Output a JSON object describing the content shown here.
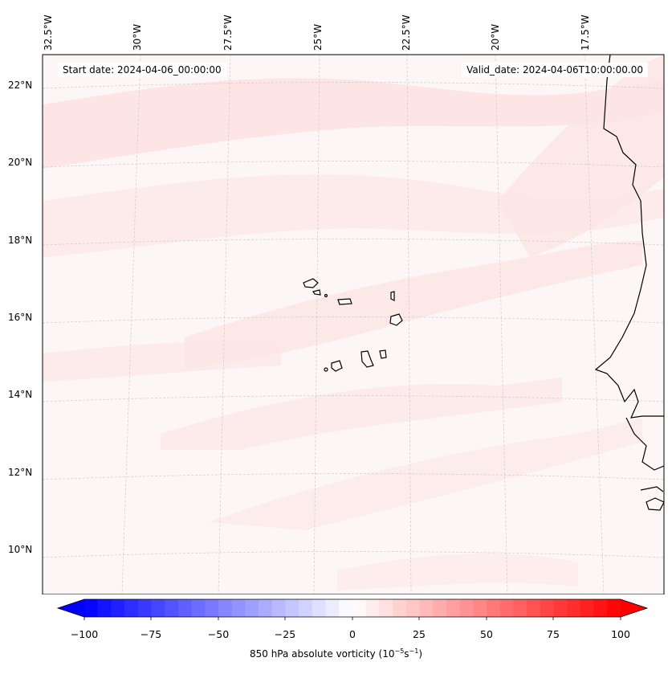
{
  "map": {
    "lon_labels": [
      "32.5°W",
      "30°W",
      "27.5°W",
      "25°W",
      "22.5°W",
      "20°W",
      "17.5°W"
    ],
    "lat_labels": [
      "22°N",
      "20°N",
      "18°N",
      "16°N",
      "14°N",
      "12°N",
      "10°N"
    ],
    "start_date": "Start date: 2024-04-06_00:00:00",
    "valid_date": "Valid_date: 2024-04-06T10:00:00.00",
    "field_colors": {
      "background": "#fdf6f6",
      "band": "#fde6e6",
      "coast": "#000000"
    }
  },
  "colorbar": {
    "ticks": [
      "−100",
      "−75",
      "−50",
      "−25",
      "0",
      "25",
      "50",
      "75",
      "100"
    ],
    "label_main": "850 hPa absolute vorticity (10",
    "label_exp1": "−5",
    "label_mid": "s",
    "label_exp2": "−1",
    "label_end": ")",
    "colors": {
      "min": "#0000ff",
      "mid": "#ffffff",
      "max": "#ff0000"
    }
  }
}
